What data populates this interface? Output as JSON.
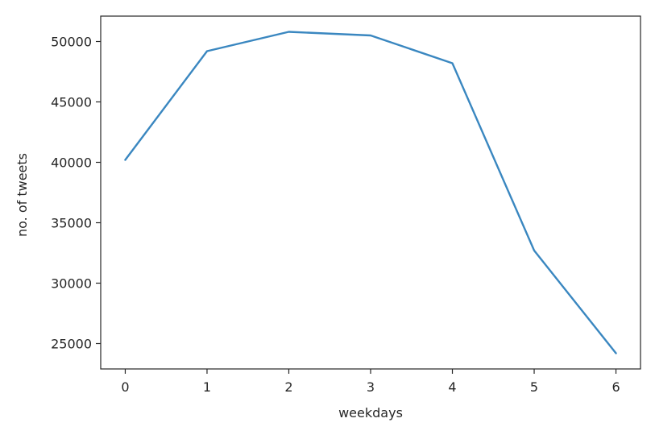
{
  "chart_data": {
    "type": "line",
    "title": "",
    "xlabel": "weekdays",
    "ylabel": "no. of tweets",
    "x": [
      0,
      1,
      2,
      3,
      4,
      5,
      6
    ],
    "series": [
      {
        "values": [
          40200,
          49200,
          50800,
          50500,
          48200,
          32700,
          24200
        ]
      }
    ],
    "xticks": [
      "0",
      "1",
      "2",
      "3",
      "4",
      "5",
      "6"
    ],
    "yticks": [
      "25000",
      "30000",
      "35000",
      "40000",
      "45000",
      "50000"
    ],
    "xlim": [
      -0.3,
      6.3
    ],
    "ylim": [
      22900,
      52100
    ],
    "grid": false,
    "line_color": "#3a87c0"
  }
}
